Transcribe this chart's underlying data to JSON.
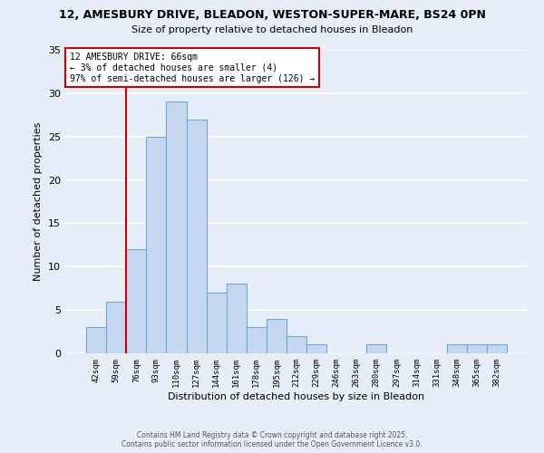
{
  "title_line1": "12, AMESBURY DRIVE, BLEADON, WESTON-SUPER-MARE, BS24 0PN",
  "title_line2": "Size of property relative to detached houses in Bleadon",
  "xlabel": "Distribution of detached houses by size in Bleadon",
  "ylabel": "Number of detached properties",
  "bar_labels": [
    "42sqm",
    "59sqm",
    "76sqm",
    "93sqm",
    "110sqm",
    "127sqm",
    "144sqm",
    "161sqm",
    "178sqm",
    "195sqm",
    "212sqm",
    "229sqm",
    "246sqm",
    "263sqm",
    "280sqm",
    "297sqm",
    "314sqm",
    "331sqm",
    "348sqm",
    "365sqm",
    "382sqm"
  ],
  "bar_values": [
    3,
    6,
    12,
    25,
    29,
    27,
    7,
    8,
    3,
    4,
    2,
    1,
    0,
    0,
    1,
    0,
    0,
    0,
    1,
    1,
    1
  ],
  "bar_color": "#c5d8f0",
  "bar_edge_color": "#6baad8",
  "ylim": [
    0,
    35
  ],
  "yticks": [
    0,
    5,
    10,
    15,
    20,
    25,
    30,
    35
  ],
  "annotation_line1": "12 AMESBURY DRIVE: 66sqm",
  "annotation_line2": "← 3% of detached houses are smaller (4)",
  "annotation_line3": "97% of semi-detached houses are larger (126) →",
  "vline_x": 1.5,
  "annotation_box_color": "#ffffff",
  "annotation_box_edge": "#cc0000",
  "vline_color": "#cc0000",
  "footer_line1": "Contains HM Land Registry data © Crown copyright and database right 2025.",
  "footer_line2": "Contains public sector information licensed under the Open Government Licence v3.0.",
  "background_color": "#e8eef8",
  "grid_color": "#ffffff"
}
